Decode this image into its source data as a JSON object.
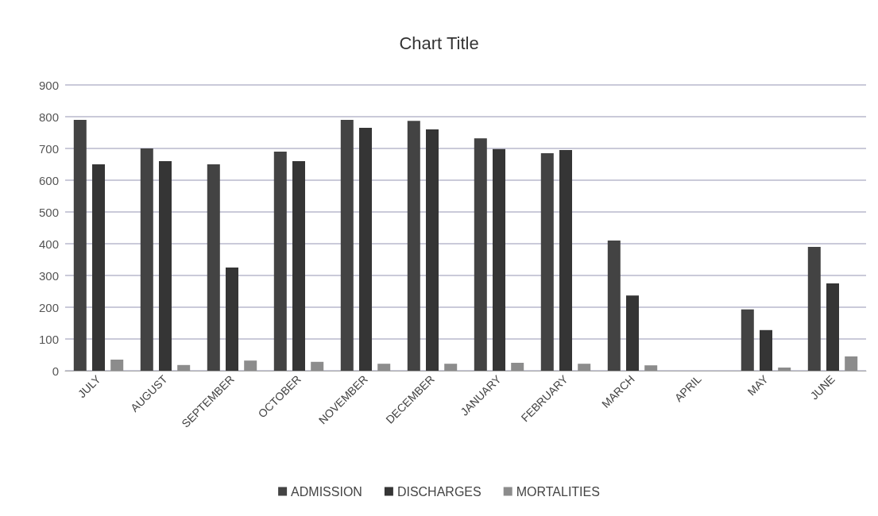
{
  "chart_data": {
    "type": "bar",
    "title": "Chart Title",
    "categories": [
      "JULY",
      "AUGUST",
      "SEPTEMBER",
      "OCTOBER",
      "NOVEMBER",
      "DECEMBER",
      "JANUARY",
      "FEBRUARY",
      "MARCH",
      "APRIL",
      "MAY",
      "JUNE"
    ],
    "series": [
      {
        "name": "ADMISSION",
        "color": "#434343",
        "values": [
          790,
          700,
          650,
          690,
          790,
          787,
          732,
          685,
          410,
          0,
          193,
          390
        ]
      },
      {
        "name": "DISCHARGES",
        "color": "#353535",
        "values": [
          650,
          660,
          325,
          660,
          765,
          760,
          698,
          695,
          237,
          0,
          128,
          275
        ]
      },
      {
        "name": "MORTALITIES",
        "color": "#8c8c8c",
        "values": [
          35,
          18,
          32,
          28,
          22,
          22,
          25,
          22,
          17,
          0,
          10,
          45
        ]
      }
    ],
    "ylim": [
      0,
      900
    ],
    "yticks": [
      0,
      100,
      200,
      300,
      400,
      500,
      600,
      700,
      800,
      900
    ],
    "grid": "y",
    "legend": "bottom"
  }
}
